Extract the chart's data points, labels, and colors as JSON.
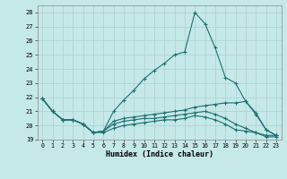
{
  "xlabel": "Humidex (Indice chaleur)",
  "xlim": [
    -0.5,
    23.5
  ],
  "ylim": [
    19,
    28.5
  ],
  "yticks": [
    19,
    20,
    21,
    22,
    23,
    24,
    25,
    26,
    27,
    28
  ],
  "xticks": [
    0,
    1,
    2,
    3,
    4,
    5,
    6,
    7,
    8,
    9,
    10,
    11,
    12,
    13,
    14,
    15,
    16,
    17,
    18,
    19,
    20,
    21,
    22,
    23
  ],
  "bg_color": "#c5e8e8",
  "grid_color": "#b0d4d4",
  "line_color": "#1e7070",
  "lines": [
    [
      21.9,
      21.0,
      20.4,
      20.4,
      20.1,
      19.5,
      19.6,
      21.0,
      21.8,
      22.5,
      23.3,
      23.9,
      24.4,
      25.0,
      25.2,
      28.0,
      27.2,
      25.5,
      23.4,
      23.0,
      21.7,
      20.8,
      19.7,
      19.3
    ],
    [
      21.9,
      21.0,
      20.4,
      20.4,
      20.1,
      19.5,
      19.6,
      20.3,
      20.5,
      20.6,
      20.7,
      20.8,
      20.9,
      21.0,
      21.1,
      21.3,
      21.4,
      21.5,
      21.6,
      21.6,
      21.7,
      20.9,
      19.7,
      19.3
    ],
    [
      21.9,
      21.0,
      20.4,
      20.4,
      20.1,
      19.5,
      19.6,
      20.1,
      20.3,
      20.4,
      20.5,
      20.5,
      20.6,
      20.7,
      20.8,
      20.9,
      21.0,
      20.8,
      20.5,
      20.1,
      19.8,
      19.5,
      19.3,
      19.3
    ],
    [
      21.9,
      21.0,
      20.4,
      20.4,
      20.1,
      19.5,
      19.5,
      19.8,
      20.0,
      20.1,
      20.2,
      20.3,
      20.4,
      20.4,
      20.5,
      20.7,
      20.6,
      20.4,
      20.1,
      19.7,
      19.6,
      19.5,
      19.2,
      19.2
    ]
  ]
}
